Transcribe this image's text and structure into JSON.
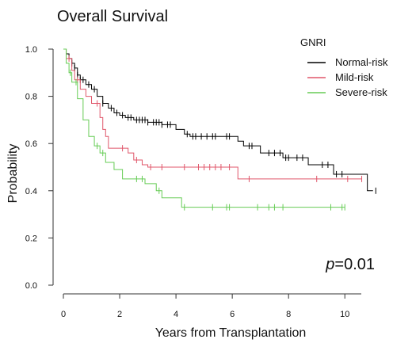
{
  "chart_data": {
    "type": "line",
    "subtype": "kaplan-meier-step",
    "title": "Overall Survival",
    "xlabel": "Years from Transplantation",
    "ylabel": "Probability",
    "xlim": [
      0,
      10.5
    ],
    "ylim": [
      0,
      1.0
    ],
    "x_ticks": [
      0,
      2,
      4,
      6,
      8,
      10
    ],
    "y_ticks": [
      0.0,
      0.2,
      0.4,
      0.6,
      0.8,
      1.0
    ],
    "y_tick_labels": [
      "0.0",
      "0.2",
      "0.4",
      "0.6",
      "0.8",
      "1.0"
    ],
    "grid": false,
    "legend": {
      "title": "GNRI",
      "placement": "top-right"
    },
    "annotation": {
      "p_prefix": "p",
      "p_value": "=0.01"
    },
    "series": [
      {
        "name": "Normal-risk",
        "color": "#000000",
        "steps": [
          [
            0,
            1.0
          ],
          [
            0.1,
            0.98
          ],
          [
            0.2,
            0.96
          ],
          [
            0.3,
            0.94
          ],
          [
            0.4,
            0.92
          ],
          [
            0.5,
            0.89
          ],
          [
            0.6,
            0.87
          ],
          [
            0.8,
            0.85
          ],
          [
            1.0,
            0.83
          ],
          [
            1.2,
            0.8
          ],
          [
            1.4,
            0.77
          ],
          [
            1.6,
            0.75
          ],
          [
            1.8,
            0.73
          ],
          [
            2.0,
            0.72
          ],
          [
            2.2,
            0.71
          ],
          [
            2.5,
            0.7
          ],
          [
            3.0,
            0.69
          ],
          [
            3.5,
            0.68
          ],
          [
            4.0,
            0.66
          ],
          [
            4.3,
            0.64
          ],
          [
            4.5,
            0.63
          ],
          [
            5.0,
            0.63
          ],
          [
            5.5,
            0.63
          ],
          [
            6.2,
            0.61
          ],
          [
            6.4,
            0.59
          ],
          [
            7.0,
            0.56
          ],
          [
            7.8,
            0.54
          ],
          [
            8.7,
            0.51
          ],
          [
            9.6,
            0.47
          ],
          [
            10.0,
            0.47
          ],
          [
            10.8,
            0.4
          ],
          [
            11.0,
            0.4
          ]
        ],
        "censor_x": [
          0.3,
          0.4,
          0.5,
          0.6,
          0.7,
          0.9,
          1.1,
          1.4,
          1.7,
          1.9,
          2.1,
          2.3,
          2.4,
          2.6,
          2.7,
          2.8,
          2.9,
          3.0,
          3.2,
          3.3,
          3.4,
          3.5,
          3.7,
          3.8,
          4.4,
          4.6,
          4.7,
          4.9,
          5.1,
          5.3,
          5.4,
          5.8,
          5.9,
          6.6,
          6.7,
          7.3,
          7.5,
          7.7,
          7.9,
          8.0,
          8.3,
          8.5,
          9.2,
          9.4,
          9.7,
          9.9,
          11.1
        ]
      },
      {
        "name": "Mild-risk",
        "color": "#e0566a",
        "steps": [
          [
            0,
            1.0
          ],
          [
            0.1,
            0.96
          ],
          [
            0.3,
            0.91
          ],
          [
            0.4,
            0.87
          ],
          [
            0.6,
            0.83
          ],
          [
            0.8,
            0.8
          ],
          [
            1.0,
            0.77
          ],
          [
            1.3,
            0.71
          ],
          [
            1.4,
            0.66
          ],
          [
            1.5,
            0.63
          ],
          [
            1.6,
            0.58
          ],
          [
            2.3,
            0.56
          ],
          [
            2.5,
            0.53
          ],
          [
            2.8,
            0.51
          ],
          [
            3.0,
            0.5
          ],
          [
            4.0,
            0.5
          ],
          [
            6.0,
            0.5
          ],
          [
            6.2,
            0.45
          ],
          [
            7.5,
            0.45
          ],
          [
            10.6,
            0.45
          ]
        ],
        "censor_x": [
          0.2,
          0.5,
          1.2,
          2.1,
          2.6,
          3.1,
          3.5,
          4.3,
          4.8,
          5.0,
          5.2,
          5.4,
          5.6,
          5.9,
          6.6,
          9.0,
          10.1,
          10.6
        ]
      },
      {
        "name": "Severe-risk",
        "color": "#66cc55",
        "steps": [
          [
            0,
            1.0
          ],
          [
            0.1,
            0.94
          ],
          [
            0.2,
            0.9
          ],
          [
            0.3,
            0.86
          ],
          [
            0.5,
            0.79
          ],
          [
            0.7,
            0.7
          ],
          [
            0.9,
            0.63
          ],
          [
            1.1,
            0.59
          ],
          [
            1.3,
            0.56
          ],
          [
            1.5,
            0.52
          ],
          [
            1.8,
            0.49
          ],
          [
            2.1,
            0.45
          ],
          [
            2.9,
            0.43
          ],
          [
            3.3,
            0.4
          ],
          [
            3.5,
            0.37
          ],
          [
            4.0,
            0.37
          ],
          [
            4.2,
            0.33
          ],
          [
            6.0,
            0.33
          ],
          [
            10.0,
            0.33
          ]
        ],
        "censor_x": [
          0.25,
          0.45,
          1.2,
          1.4,
          2.6,
          2.8,
          3.4,
          4.3,
          5.3,
          5.8,
          5.9,
          6.9,
          7.3,
          7.5,
          7.8,
          9.5,
          9.9,
          10.0
        ]
      }
    ]
  }
}
